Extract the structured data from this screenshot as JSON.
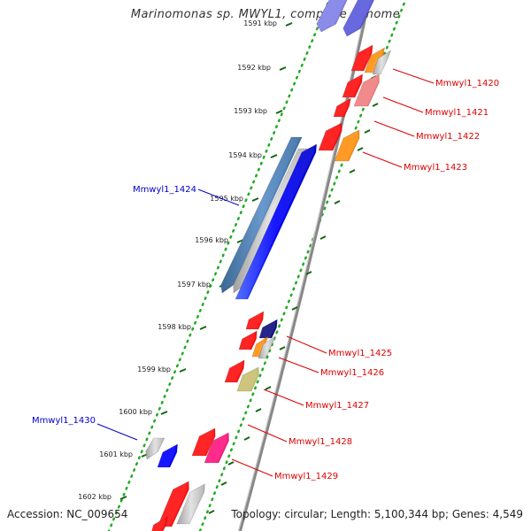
{
  "title": "Marinomonas sp. MWYL1, complete genome",
  "footer": {
    "accession": "Accession: NC_009654",
    "topology": "Topology: circular; Length: 5,100,344 bp; Genes: 4,549"
  },
  "colors": {
    "backbone": "#888888",
    "forward_gene_label": "#dd0000",
    "reverse_gene_label": "#0000cc",
    "tick_dots": "#22aa22"
  },
  "ticks": [
    {
      "label": "1591 kbp"
    },
    {
      "label": "1592 kbp"
    },
    {
      "label": "1593 kbp"
    },
    {
      "label": "1594 kbp"
    },
    {
      "label": "1595 kbp"
    },
    {
      "label": "1596 kbp"
    },
    {
      "label": "1597 kbp"
    },
    {
      "label": "1598 kbp"
    },
    {
      "label": "1599 kbp"
    },
    {
      "label": "1600 kbp"
    },
    {
      "label": "1601 kbp"
    },
    {
      "label": "1602 kbp"
    }
  ],
  "gene_labels": [
    {
      "label": "Mmwyl1_1420",
      "color": "#dd0000"
    },
    {
      "label": "Mmwyl1_1421",
      "color": "#dd0000"
    },
    {
      "label": "Mmwyl1_1422",
      "color": "#dd0000"
    },
    {
      "label": "Mmwyl1_1423",
      "color": "#dd0000"
    },
    {
      "label": "Mmwyl1_1424",
      "color": "#0000cc"
    },
    {
      "label": "Mmwyl1_1425",
      "color": "#dd0000"
    },
    {
      "label": "Mmwyl1_1426",
      "color": "#dd0000"
    },
    {
      "label": "Mmwyl1_1427",
      "color": "#dd0000"
    },
    {
      "label": "Mmwyl1_1428",
      "color": "#dd0000"
    },
    {
      "label": "Mmwyl1_1429",
      "color": "#dd0000"
    },
    {
      "label": "Mmwyl1_1430",
      "color": "#0000cc"
    }
  ]
}
